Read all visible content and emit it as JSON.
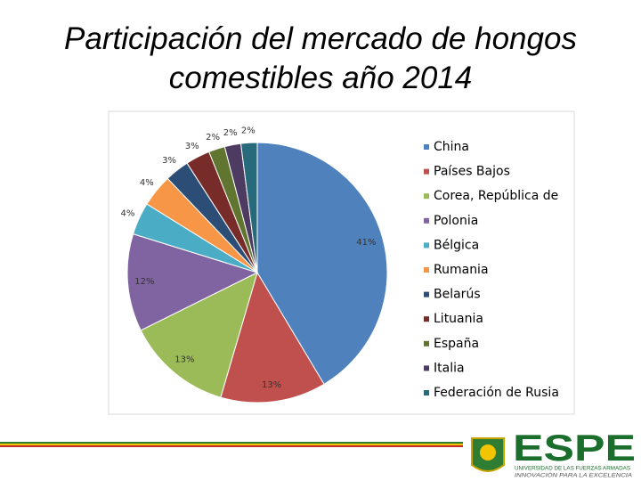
{
  "chart_data": {
    "type": "pie",
    "title": "Participación del mercado de hongos comestibles año 2014",
    "categories": [
      "China",
      "Países Bajos",
      "Corea, República de",
      "Polonia",
      "Bélgica",
      "Rumania",
      "Belarús",
      "Lituania",
      "España",
      "Italia",
      "Federación de Rusia"
    ],
    "values": [
      41,
      13,
      13,
      12,
      4,
      4,
      3,
      3,
      2,
      2,
      2
    ],
    "value_labels": [
      "41%",
      "13%",
      "13%",
      "12%",
      "4%",
      "4%",
      "3%",
      "3%",
      "2%",
      "2%",
      "2%"
    ],
    "colors": [
      "#4f81bd",
      "#c0504d",
      "#9bbb59",
      "#8064a2",
      "#4bacc6",
      "#f79646",
      "#2c4d75",
      "#772c2a",
      "#5f7530",
      "#4d3b62",
      "#276a7c"
    ],
    "legend": "right"
  },
  "logo": {
    "name": "ESPE",
    "line1": "UNIVERSIDAD DE LAS FUERZAS ARMADAS",
    "line2": "INNOVACIÓN PARA LA EXCELENCIA"
  }
}
